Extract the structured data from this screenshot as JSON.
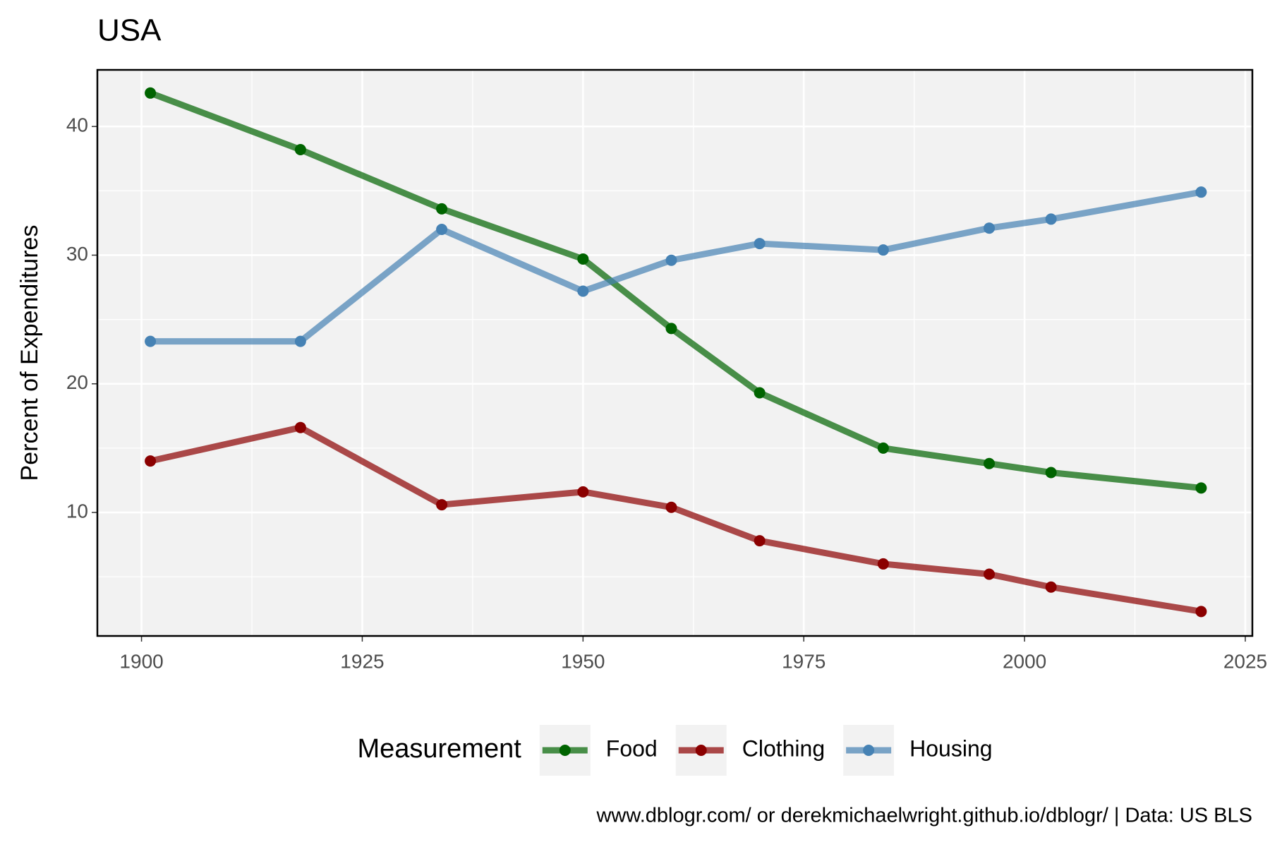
{
  "chart_data": {
    "type": "line",
    "title": "USA",
    "ylabel": "Percent of Expenditures",
    "caption": "www.dblogr.com/ or derekmichaelwright.github.io/dblogr/ | Data: US BLS",
    "legend_title": "Measurement",
    "legend_position": "bottom",
    "x": [
      1901,
      1918,
      1934,
      1950,
      1960,
      1970,
      1984,
      1996,
      2003,
      2020
    ],
    "series": [
      {
        "name": "Food",
        "color": "#006400",
        "values": [
          42.6,
          38.2,
          33.6,
          29.7,
          24.3,
          19.3,
          15.0,
          13.8,
          13.1,
          11.9
        ]
      },
      {
        "name": "Clothing",
        "color": "#8b0000",
        "values": [
          14.0,
          16.6,
          10.6,
          11.6,
          10.4,
          7.8,
          6.0,
          5.2,
          4.2,
          2.3
        ]
      },
      {
        "name": "Housing",
        "color": "#4682b4",
        "values": [
          23.3,
          23.3,
          32.0,
          27.2,
          29.6,
          30.9,
          30.4,
          32.1,
          32.8,
          34.9
        ]
      }
    ],
    "line_alpha": 0.7,
    "xlim": [
      1895,
      2025.8
    ],
    "xticks": [
      1900,
      1925,
      1950,
      1975,
      2000,
      2025
    ],
    "xminor": [
      1912.5,
      1937.5,
      1962.5,
      1987.5,
      2012.5
    ],
    "ylim": [
      0.4,
      44.4
    ],
    "yticks": [
      10,
      20,
      30,
      40
    ],
    "yminor": [
      5,
      15,
      25,
      35
    ],
    "grid": true
  }
}
